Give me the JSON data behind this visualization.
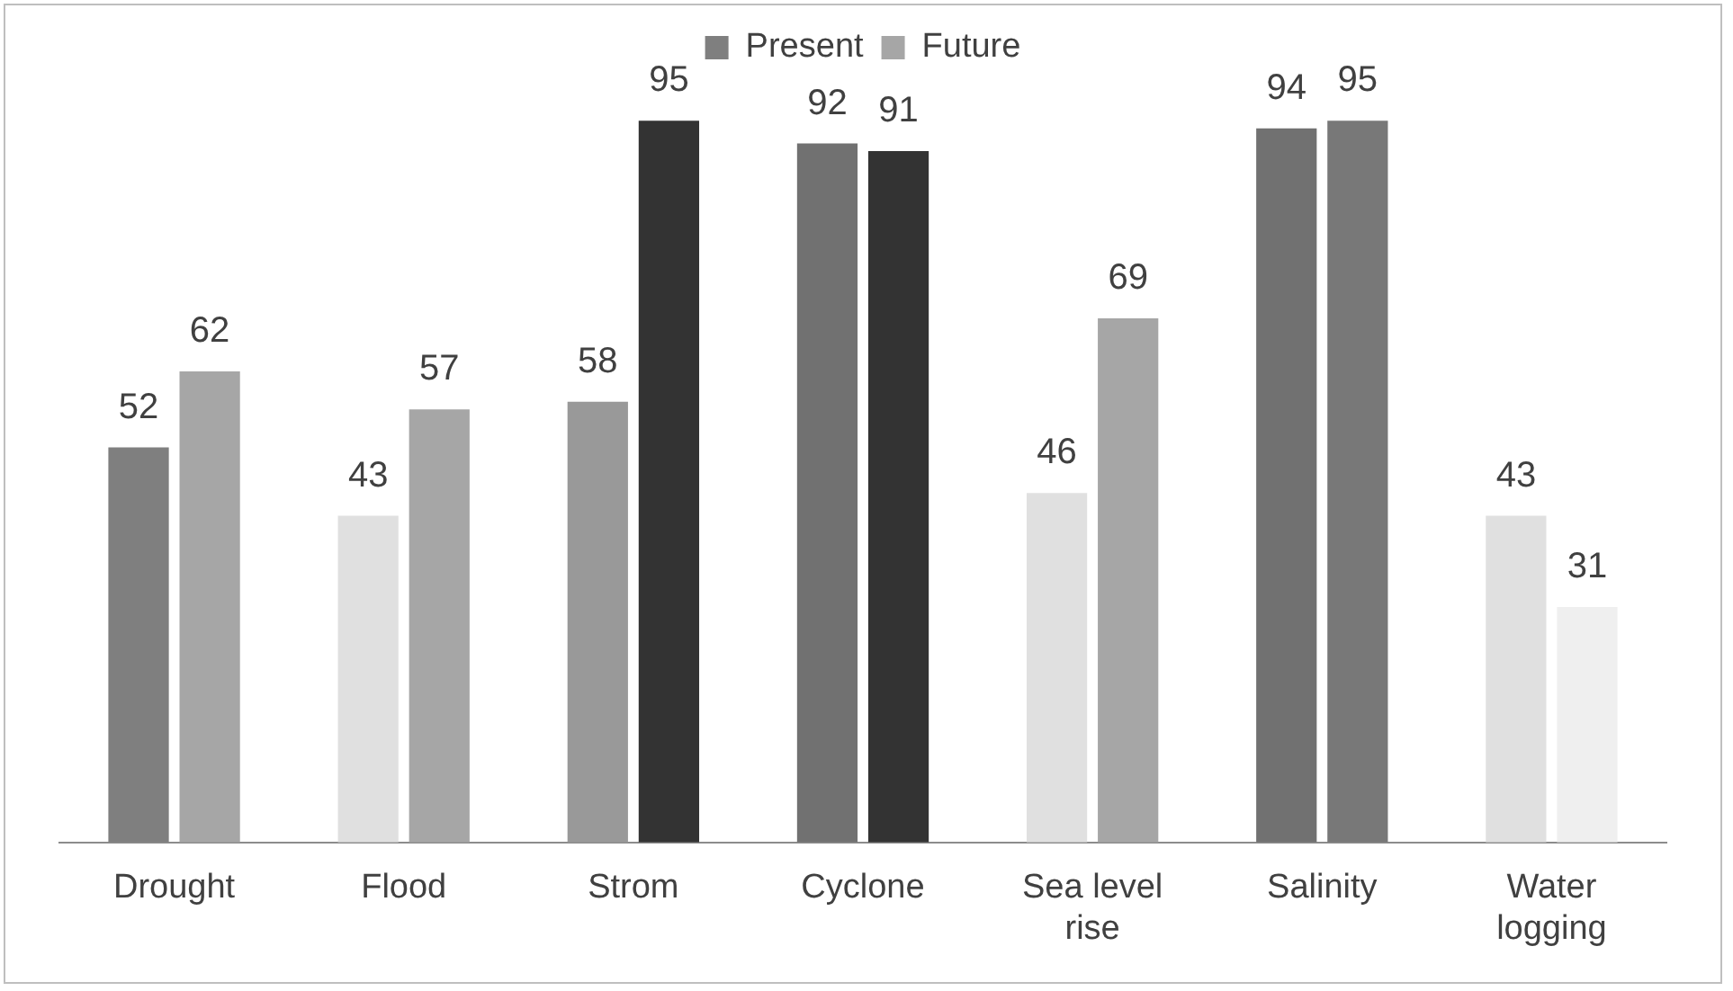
{
  "chart_data": {
    "type": "bar",
    "categories": [
      "Drought",
      "Flood",
      "Strom",
      "Cyclone",
      "Sea level rise",
      "Salinity",
      "Water logging"
    ],
    "series": [
      {
        "name": "Present",
        "colors": [
          "#7f7f7f",
          "#e0e0e0",
          "#999999",
          "#717171",
          "#e0e0e0",
          "#717171",
          "#e0e0e0"
        ],
        "values": [
          52,
          43,
          58,
          92,
          46,
          94,
          43
        ]
      },
      {
        "name": "Future",
        "colors": [
          "#a6a6a6",
          "#a6a6a6",
          "#333333",
          "#333333",
          "#a6a6a6",
          "#787878",
          "#efefef"
        ],
        "values": [
          62,
          57,
          95,
          91,
          69,
          95,
          31
        ]
      }
    ],
    "data_labels": true,
    "legend": "top",
    "grid": false
  }
}
